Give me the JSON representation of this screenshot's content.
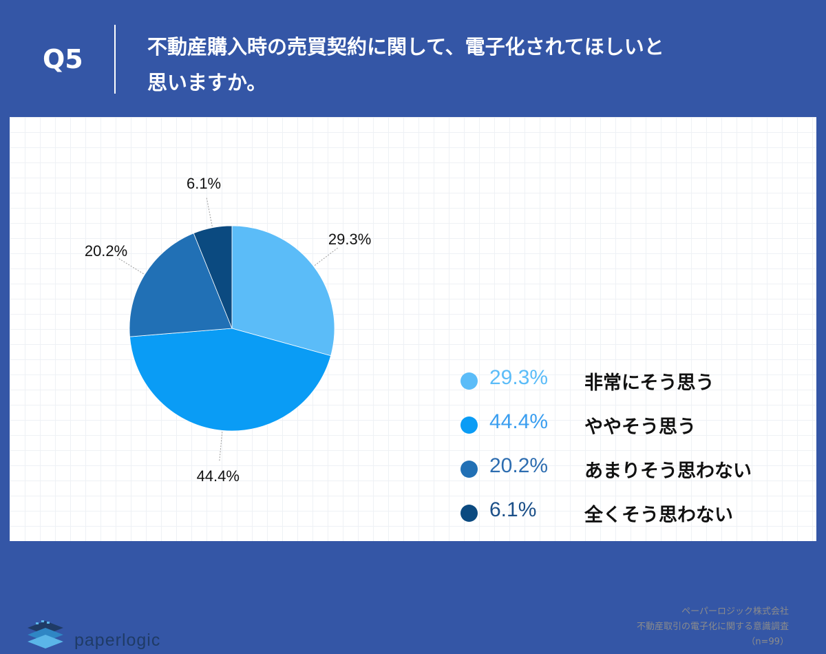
{
  "header": {
    "question_number": "Q5",
    "question_line1": "不動産購入時の売買契約に関して、電子化されてほしいと",
    "question_line2": "思いますか。"
  },
  "chart_data": {
    "type": "pie",
    "categories": [
      "非常にそう思う",
      "ややそう思う",
      "あまりそう思わない",
      "全くそう思わない"
    ],
    "values": [
      29.3,
      44.4,
      20.2,
      6.1
    ],
    "labels": [
      "29.3%",
      "44.4%",
      "20.2%",
      "6.1%"
    ],
    "colors": [
      "#5bbcf8",
      "#0a9cf5",
      "#2170b5",
      "#0b4a80"
    ],
    "legend_value_colors": [
      "#5bbcf8",
      "#3a9ef0",
      "#2d6db0",
      "#1b4f88"
    ],
    "legend_position": "right"
  },
  "footer": {
    "logo_text": "paperlogic",
    "source_lines": [
      "ペーパーロジック株式会社",
      "不動産取引の電子化に関する意識調査",
      "（n=99）"
    ]
  }
}
